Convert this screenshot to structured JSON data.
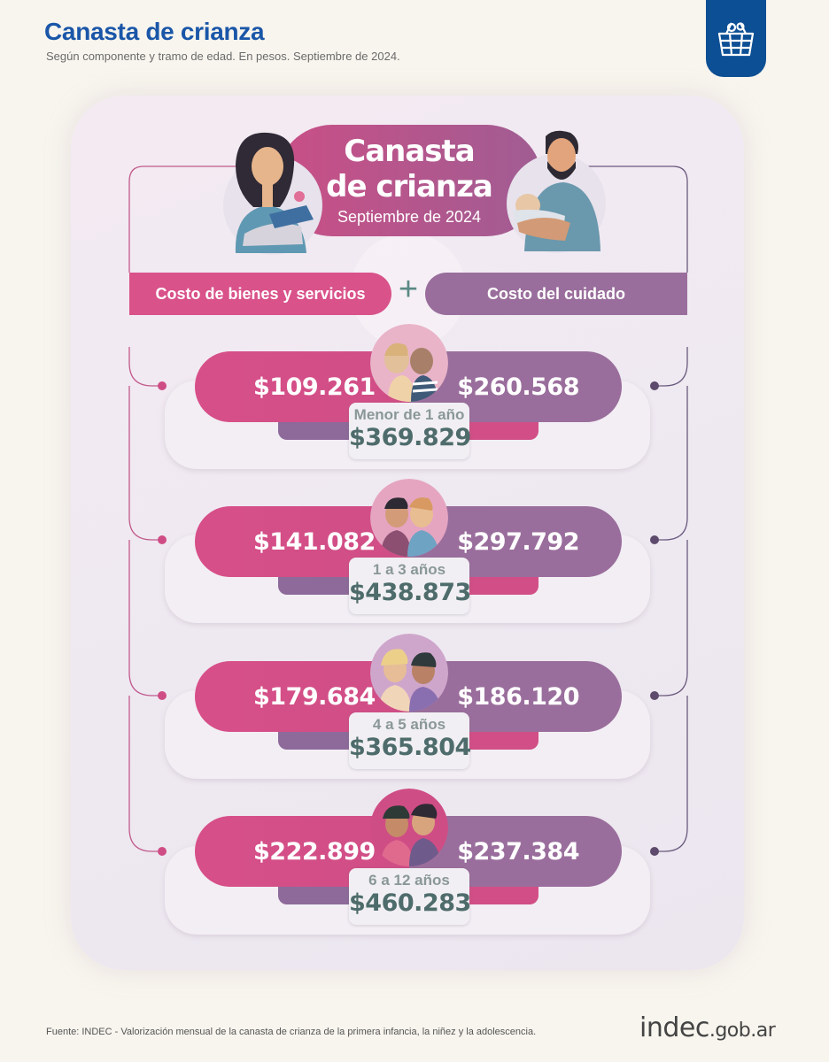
{
  "header": {
    "title": "Canasta de crianza",
    "subtitle": "Según componente y tramo de edad. En pesos. Septiembre de 2024."
  },
  "logo": {
    "icon": "basket-icon",
    "color": "#0d4f94"
  },
  "hero": {
    "line1": "Canasta",
    "line2": "de crianza",
    "date": "Septiembre de 2024"
  },
  "columns": {
    "left": "Costo de bienes y servicios",
    "right": "Costo del cuidado",
    "plus": "+"
  },
  "rows": [
    {
      "age": "Menor de 1 año",
      "goods": "$109.261",
      "care": "$260.568",
      "total": "$369.829"
    },
    {
      "age": "1 a 3 años",
      "goods": "$141.082",
      "care": "$297.792",
      "total": "$438.873"
    },
    {
      "age": "4 a 5 años",
      "goods": "$179.684",
      "care": "$186.120",
      "total": "$365.804"
    },
    {
      "age": "6 a 12 años",
      "goods": "$222.899",
      "care": "$237.384",
      "total": "$460.283"
    }
  ],
  "footer": {
    "source": "Fuente: INDEC - Valorización mensual de la canasta de crianza de la primera infancia, la niñez y la adolescencia.",
    "brand_main": "indec",
    "brand_suffix": ".gob.ar"
  },
  "colors": {
    "pink": "#d74f88",
    "purple": "#9a6e9c",
    "teal": "#4e6c6b",
    "title_blue": "#1a56a8"
  }
}
